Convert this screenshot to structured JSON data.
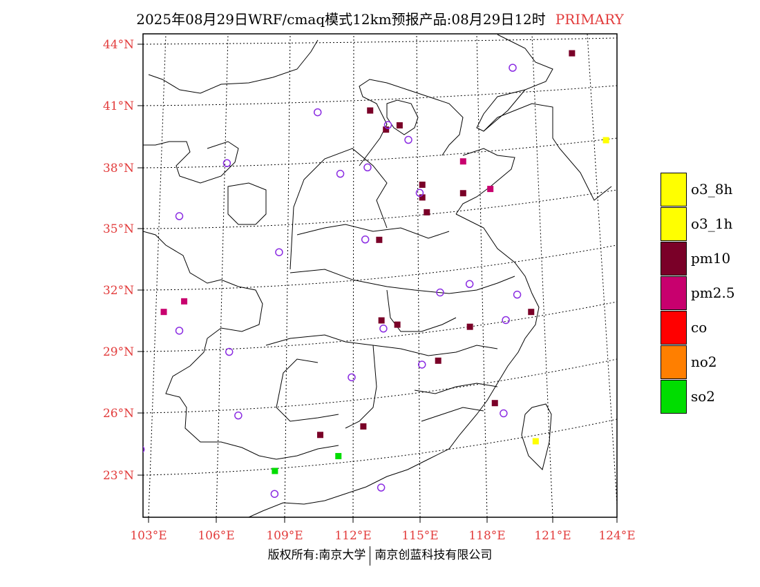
{
  "header": {
    "title": "2025年08月29日WRF/cmaq模式12km预报产品:08月29日12时",
    "tag": "PRIMARY"
  },
  "map": {
    "lat_labels": [
      "44°N",
      "41°N",
      "38°N",
      "35°N",
      "32°N",
      "29°N",
      "26°N",
      "23°N"
    ],
    "lon_labels": [
      "103°E",
      "106°E",
      "109°E",
      "112°E",
      "115°E",
      "118°E",
      "121°E",
      "124°E"
    ],
    "extent": {
      "lon": [
        102.7,
        123.6
      ],
      "lat": [
        21.7,
        44.5
      ]
    },
    "pollutant_cells": [
      {
        "type": "pm10",
        "lon": 114.0,
        "lat": 40.2
      },
      {
        "type": "pm10",
        "lon": 112.7,
        "lat": 40.9
      },
      {
        "type": "pm10",
        "lon": 113.4,
        "lat": 40.0
      },
      {
        "type": "pm10",
        "lon": 115.0,
        "lat": 37.4
      },
      {
        "type": "pm10",
        "lon": 115.0,
        "lat": 36.8
      },
      {
        "type": "pm10",
        "lon": 115.2,
        "lat": 36.1
      },
      {
        "type": "pm10",
        "lon": 113.1,
        "lat": 34.8
      },
      {
        "type": "pm10",
        "lon": 113.2,
        "lat": 31.0
      },
      {
        "type": "pm10",
        "lon": 113.9,
        "lat": 30.8
      },
      {
        "type": "pm10",
        "lon": 110.5,
        "lat": 25.6
      },
      {
        "type": "pm10",
        "lon": 115.7,
        "lat": 29.1
      },
      {
        "type": "pm10",
        "lon": 119.8,
        "lat": 31.4
      },
      {
        "type": "pm10",
        "lon": 118.2,
        "lat": 27.1
      },
      {
        "type": "pm10",
        "lon": 121.6,
        "lat": 43.6
      },
      {
        "type": "pm10",
        "lon": 116.8,
        "lat": 37.0
      },
      {
        "type": "pm10",
        "lon": 117.1,
        "lat": 30.7
      },
      {
        "type": "pm10",
        "lon": 112.4,
        "lat": 26.0
      },
      {
        "type": "pm2.5",
        "lon": 104.5,
        "lat": 31.9
      },
      {
        "type": "pm2.5",
        "lon": 103.6,
        "lat": 31.4
      },
      {
        "type": "pm2.5",
        "lon": 118.0,
        "lat": 37.2
      },
      {
        "type": "pm2.5",
        "lon": 116.8,
        "lat": 38.5
      },
      {
        "type": "o3_8h",
        "lon": 123.1,
        "lat": 39.5
      },
      {
        "type": "o3_8h",
        "lon": 120.0,
        "lat": 25.3
      },
      {
        "type": "so2",
        "lon": 108.5,
        "lat": 23.9
      },
      {
        "type": "so2",
        "lon": 111.3,
        "lat": 24.6
      }
    ],
    "city_markers": [
      {
        "lon": 119.0,
        "lat": 42.9
      },
      {
        "lon": 110.4,
        "lat": 40.8
      },
      {
        "lon": 113.5,
        "lat": 40.2
      },
      {
        "lon": 114.4,
        "lat": 39.5
      },
      {
        "lon": 106.4,
        "lat": 38.4
      },
      {
        "lon": 111.4,
        "lat": 37.9
      },
      {
        "lon": 112.6,
        "lat": 38.2
      },
      {
        "lon": 114.9,
        "lat": 37.0
      },
      {
        "lon": 104.3,
        "lat": 35.9
      },
      {
        "lon": 112.5,
        "lat": 34.8
      },
      {
        "lon": 108.7,
        "lat": 34.2
      },
      {
        "lon": 117.1,
        "lat": 32.7
      },
      {
        "lon": 115.8,
        "lat": 32.3
      },
      {
        "lon": 119.2,
        "lat": 32.2
      },
      {
        "lon": 113.3,
        "lat": 30.6
      },
      {
        "lon": 104.3,
        "lat": 30.5
      },
      {
        "lon": 118.7,
        "lat": 31.0
      },
      {
        "lon": 106.5,
        "lat": 29.5
      },
      {
        "lon": 115.0,
        "lat": 28.9
      },
      {
        "lon": 111.9,
        "lat": 28.3
      },
      {
        "lon": 118.6,
        "lat": 26.6
      },
      {
        "lon": 106.9,
        "lat": 26.5
      },
      {
        "lon": 102.6,
        "lat": 24.9
      },
      {
        "lon": 113.2,
        "lat": 23.1
      },
      {
        "lon": 108.5,
        "lat": 22.8
      }
    ]
  },
  "legend": {
    "items": [
      {
        "label": "o3_8h",
        "color": "#ffff00"
      },
      {
        "label": "o3_1h",
        "color": "#ffff00"
      },
      {
        "label": "pm10",
        "color": "#7a0028"
      },
      {
        "label": "pm2.5",
        "color": "#c8006e"
      },
      {
        "label": "co",
        "color": "#ff0000"
      },
      {
        "label": "no2",
        "color": "#ff7f00"
      },
      {
        "label": "so2",
        "color": "#00dd00"
      }
    ]
  },
  "colors": {
    "pm10": "#7a0028",
    "pm2.5": "#c8006e",
    "o3_8h": "#ffff00",
    "so2": "#00dd00",
    "marker": "#8a2be2",
    "axis_label": "#e23b3b"
  },
  "footer": {
    "left": "版权所有:南京大学",
    "right": "南京创蓝科技有限公司"
  }
}
